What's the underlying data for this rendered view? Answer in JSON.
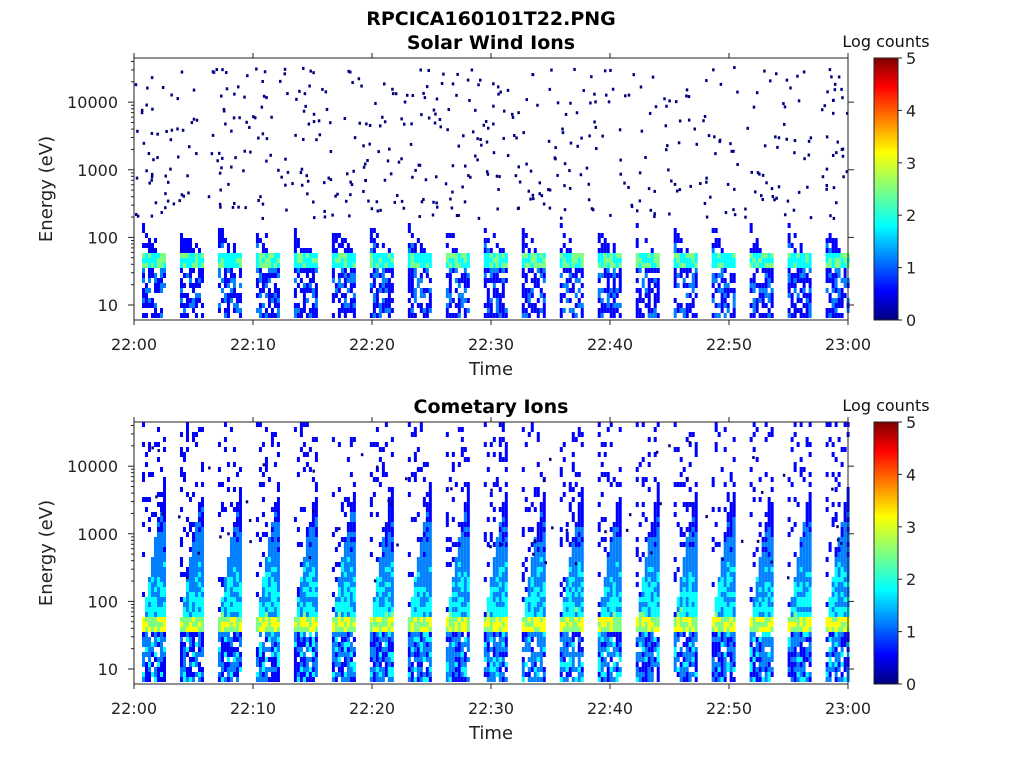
{
  "figure_title": "RPCICA160101T22.PNG",
  "colormap": [
    "#00007f",
    "#0000ff",
    "#007fff",
    "#00ffff",
    "#7fff7f",
    "#ffff00",
    "#ff7f00",
    "#ff0000",
    "#7f0000"
  ],
  "chart_data": [
    {
      "type": "heatmap",
      "title": "Solar Wind Ions",
      "xlabel": "Time",
      "ylabel": "Energy (eV)",
      "x_ticks": [
        "22:00",
        "22:10",
        "22:20",
        "22:30",
        "22:40",
        "22:50",
        "23:00"
      ],
      "x_range": [
        "22:00",
        "23:00"
      ],
      "y_scale": "log",
      "y_ticks": [
        "10",
        "100",
        "1000",
        "10000"
      ],
      "ylim": [
        6,
        45000
      ],
      "colorbar_label": "Log counts",
      "colorbar_ticks": [
        "0",
        "1",
        "2",
        "3",
        "4",
        "5"
      ],
      "clim": [
        0,
        5
      ],
      "sweep_count": 19,
      "peak_energy_eV": 40,
      "peak_log_counts": 2.5
    },
    {
      "type": "heatmap",
      "title": "Cometary Ions",
      "xlabel": "Time",
      "ylabel": "Energy (eV)",
      "x_ticks": [
        "22:00",
        "22:10",
        "22:20",
        "22:30",
        "22:40",
        "22:50",
        "23:00"
      ],
      "x_range": [
        "22:00",
        "23:00"
      ],
      "y_scale": "log",
      "y_ticks": [
        "10",
        "100",
        "1000",
        "10000"
      ],
      "ylim": [
        6,
        45000
      ],
      "colorbar_label": "Log counts",
      "colorbar_ticks": [
        "0",
        "1",
        "2",
        "3",
        "4",
        "5"
      ],
      "clim": [
        0,
        5
      ],
      "sweep_count": 19,
      "peak_energy_eV": 40,
      "peak_log_counts": 3.2
    }
  ]
}
